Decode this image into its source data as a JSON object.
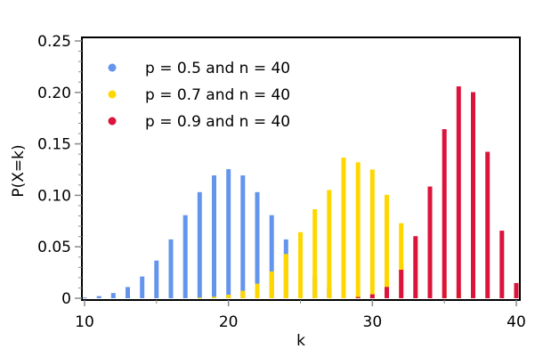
{
  "chart_data": {
    "type": "bar",
    "title": "",
    "xlabel": "k",
    "ylabel": "P(X=k)",
    "xlim": [
      10,
      40
    ],
    "ylim": [
      0,
      0.25
    ],
    "xticks": [
      "10",
      "20",
      "30",
      "40"
    ],
    "yticks": [
      "0",
      "0.05",
      "0.10",
      "0.15",
      "0.20",
      "0.25"
    ],
    "grid": false,
    "legend_position": "upper-left",
    "x": [
      10,
      11,
      12,
      13,
      14,
      15,
      16,
      17,
      18,
      19,
      20,
      21,
      22,
      23,
      24,
      25,
      26,
      27,
      28,
      29,
      30,
      31,
      32,
      33,
      34,
      35,
      36,
      37,
      38,
      39,
      40
    ],
    "series": [
      {
        "name": "p = 0.5 and n = 40",
        "color": "#6495ED",
        "values": [
          0.0008,
          0.0021,
          0.0051,
          0.0109,
          0.0211,
          0.0366,
          0.0572,
          0.0807,
          0.1031,
          0.1194,
          0.1254,
          0.1194,
          0.1031,
          0.0807,
          0.0572,
          0.0366,
          0.0211,
          0.0109,
          0.0051,
          0.0021,
          0.0008,
          0.0003,
          0.0001,
          0.0,
          0.0,
          0.0,
          0.0,
          0.0,
          0.0,
          0.0,
          0.0
        ]
      },
      {
        "name": "p = 0.7 and n = 40",
        "color": "#FFD700",
        "values": [
          0.0,
          0.0,
          0.0,
          0.0,
          0.0,
          0.0,
          0.0001,
          0.0002,
          0.0006,
          0.0015,
          0.0035,
          0.0073,
          0.0142,
          0.026,
          0.043,
          0.0642,
          0.0865,
          0.1052,
          0.1366,
          0.1321,
          0.1251,
          0.1005,
          0.0729,
          0.0565,
          0.0325,
          0.0168,
          0.0079,
          0.0033,
          0.0012,
          0.0004,
          0.0001
        ]
      },
      {
        "name": "p = 0.9 and n = 40",
        "color": "#DC143C",
        "values": [
          0.0,
          0.0,
          0.0,
          0.0,
          0.0,
          0.0,
          0.0,
          0.0,
          0.0,
          0.0,
          0.0,
          0.0,
          0.0,
          0.0,
          0.0,
          0.0,
          0.0,
          0.0001,
          0.0003,
          0.0011,
          0.0038,
          0.011,
          0.0277,
          0.0603,
          0.1086,
          0.1643,
          0.2059,
          0.2003,
          0.1423,
          0.0657,
          0.0148
        ]
      }
    ]
  },
  "legend": {
    "items": [
      {
        "label": "p = 0.5 and n = 40",
        "color": "#6495ED"
      },
      {
        "label": "p = 0.7 and n = 40",
        "color": "#FFD700"
      },
      {
        "label": "p = 0.9 and n = 40",
        "color": "#DC143C"
      }
    ]
  },
  "axes": {
    "xlabel": "k",
    "ylabel": "P(X=k)",
    "xticks": [
      "10",
      "20",
      "30",
      "40"
    ],
    "yticks": [
      "0",
      "0.05",
      "0.10",
      "0.15",
      "0.20",
      "0.25"
    ]
  }
}
